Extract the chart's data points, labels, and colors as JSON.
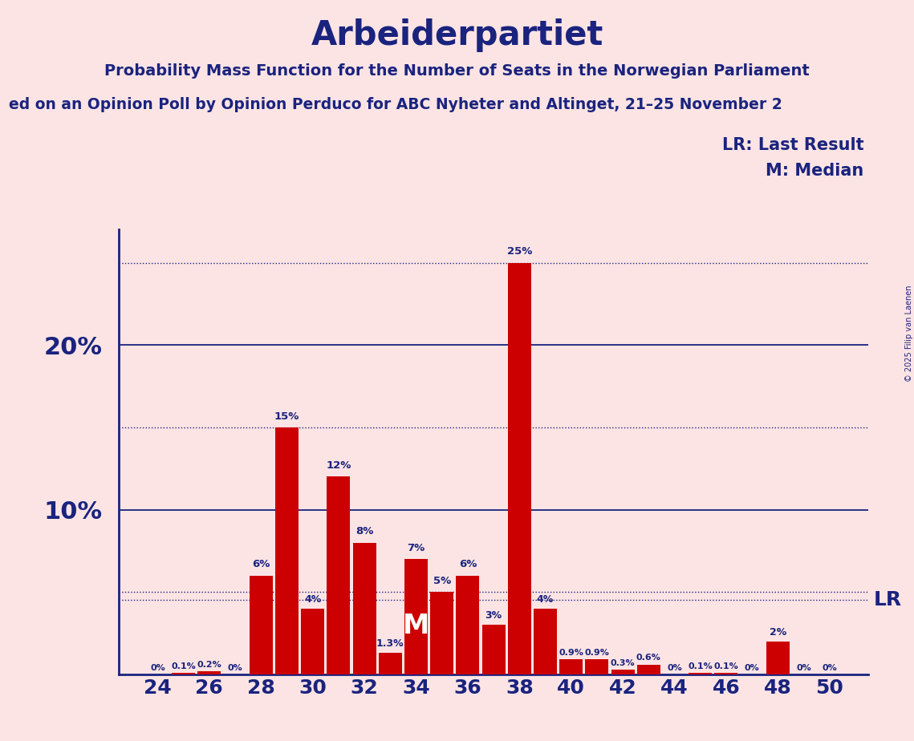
{
  "title": "Arbeiderpartiet",
  "subtitle1": "Probability Mass Function for the Number of Seats in the Norwegian Parliament",
  "subtitle2": "ed on an Opinion Poll by Opinion Perduco for ABC Nyheter and Altinget, 21–25 November 2",
  "copyright": "© 2025 Filip van Laenen",
  "background_color": "#fce4e4",
  "bar_color": "#cc0000",
  "title_color": "#1a237e",
  "seats": [
    24,
    25,
    26,
    27,
    28,
    29,
    30,
    31,
    32,
    33,
    34,
    35,
    36,
    37,
    38,
    39,
    40,
    41,
    42,
    43,
    44,
    45,
    46,
    47,
    48,
    49,
    50
  ],
  "probabilities": [
    0.0,
    0.1,
    0.2,
    0.0,
    6.0,
    15.0,
    4.0,
    12.0,
    8.0,
    1.3,
    7.0,
    5.0,
    6.0,
    3.0,
    25.0,
    4.0,
    0.9,
    0.9,
    0.3,
    0.6,
    0.0,
    0.1,
    0.1,
    0.0,
    2.0,
    0.0,
    0.0
  ],
  "bar_labels": [
    "0%",
    "0.1%",
    "0.2%",
    "0%",
    "6%",
    "15%",
    "4%",
    "12%",
    "8%",
    "1.3%",
    "7%",
    "5%",
    "6%",
    "3%",
    "25%",
    "4%",
    "0.9%",
    "0.9%",
    "0.3%",
    "0.6%",
    "0%",
    "0.1%",
    "0.1%",
    "0%",
    "2%",
    "0%",
    "0%"
  ],
  "median_seat": 34,
  "lr_value": 4.5,
  "ylim": [
    0,
    27
  ],
  "solid_hlines": [
    10,
    20
  ],
  "dotted_hlines": [
    5,
    15,
    25
  ],
  "lr_hline": 4.5,
  "xlim_min": 22.5,
  "xlim_max": 51.5,
  "xticks": [
    24,
    26,
    28,
    30,
    32,
    34,
    36,
    38,
    40,
    42,
    44,
    46,
    48,
    50
  ],
  "ytick_positions": [
    10,
    20
  ],
  "ytick_labels": [
    "10%",
    "20%"
  ],
  "legend_lr": "LR: Last Result",
  "legend_m": "M: Median",
  "lr_label": "LR"
}
